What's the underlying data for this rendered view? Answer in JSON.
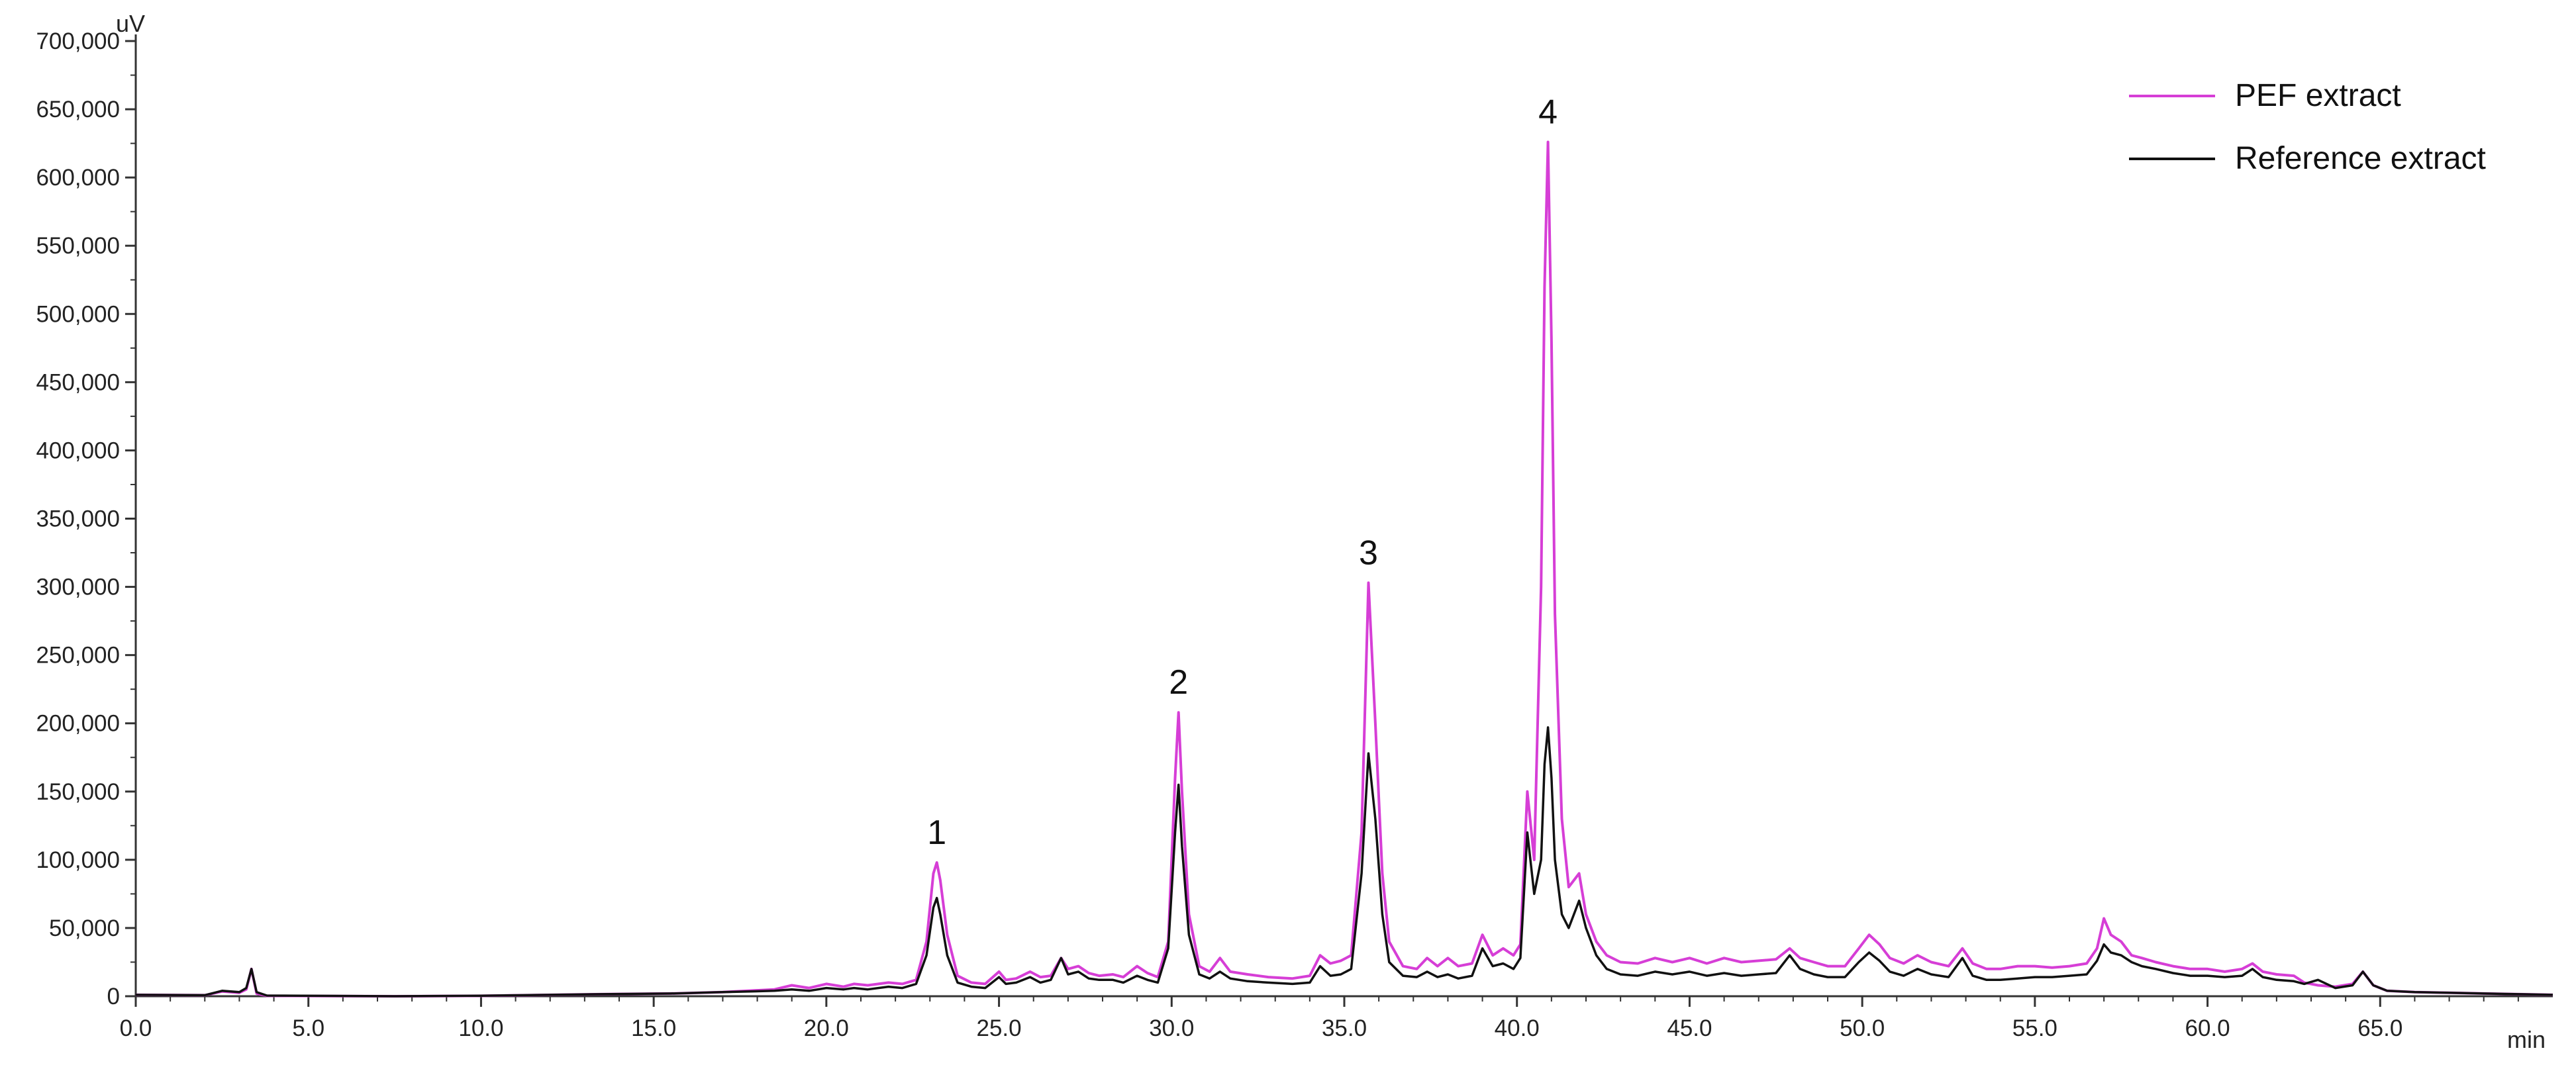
{
  "chart_data": {
    "type": "line",
    "title": "",
    "xlabel": "min",
    "ylabel": "uV",
    "xlim": [
      0,
      70
    ],
    "ylim": [
      0,
      700000
    ],
    "grid": false,
    "legend_position": "top-right",
    "x_ticks": [
      "0.0",
      "5.0",
      "10.0",
      "15.0",
      "20.0",
      "25.0",
      "30.0",
      "35.0",
      "40.0",
      "45.0",
      "50.0",
      "55.0",
      "60.0",
      "65.0"
    ],
    "y_ticks": [
      "0",
      "50,000",
      "100,000",
      "150,000",
      "200,000",
      "250,000",
      "300,000",
      "350,000",
      "400,000",
      "450,000",
      "500,000",
      "550,000",
      "600,000",
      "650,000",
      "700,000"
    ],
    "colors": {
      "pef": "#d63ed6",
      "reference": "#111111",
      "axis": "#333333"
    },
    "annotations": [
      {
        "label": "1",
        "x": 23.2,
        "y": 98000
      },
      {
        "label": "2",
        "x": 30.2,
        "y": 208000
      },
      {
        "label": "3",
        "x": 35.7,
        "y": 303000
      },
      {
        "label": "4",
        "x": 40.9,
        "y": 626000
      }
    ],
    "series": [
      {
        "name": "PEF extract",
        "color": "#d63ed6",
        "x": [
          0,
          2.0,
          2.5,
          3.0,
          3.2,
          3.35,
          3.5,
          3.8,
          7.5,
          10.0,
          13.5,
          15.5,
          17.0,
          18.5,
          19.0,
          19.5,
          20.0,
          20.5,
          20.8,
          21.2,
          21.8,
          22.2,
          22.6,
          22.9,
          23.1,
          23.2,
          23.3,
          23.5,
          23.8,
          24.2,
          24.6,
          25.0,
          25.2,
          25.5,
          25.9,
          26.2,
          26.5,
          26.8,
          27.0,
          27.3,
          27.6,
          27.9,
          28.3,
          28.6,
          29.0,
          29.3,
          29.6,
          29.9,
          30.1,
          30.2,
          30.3,
          30.5,
          30.8,
          31.1,
          31.4,
          31.7,
          32.2,
          32.8,
          33.5,
          34.0,
          34.3,
          34.6,
          34.9,
          35.2,
          35.5,
          35.7,
          35.9,
          36.1,
          36.3,
          36.7,
          37.1,
          37.4,
          37.7,
          38.0,
          38.3,
          38.7,
          39.0,
          39.3,
          39.6,
          39.9,
          40.1,
          40.3,
          40.5,
          40.7,
          40.8,
          40.9,
          41.0,
          41.1,
          41.3,
          41.5,
          41.8,
          42.0,
          42.3,
          42.6,
          43.0,
          43.5,
          44.0,
          44.5,
          45.0,
          45.5,
          46.0,
          46.5,
          47.0,
          47.5,
          47.9,
          48.2,
          48.6,
          49.0,
          49.5,
          49.9,
          50.2,
          50.5,
          50.8,
          51.2,
          51.6,
          52.0,
          52.5,
          52.9,
          53.2,
          53.6,
          54.0,
          54.5,
          55.0,
          55.5,
          56.0,
          56.5,
          56.8,
          57.0,
          57.2,
          57.5,
          57.8,
          58.1,
          58.5,
          59.0,
          59.5,
          60.0,
          60.5,
          61.0,
          61.3,
          61.6,
          62.0,
          62.5,
          62.8,
          63.2,
          63.7,
          64.2,
          64.5,
          64.8,
          65.2,
          66.0,
          67.0,
          68.0,
          69.0,
          70.0
        ],
        "y": [
          1000,
          800,
          3500,
          2500,
          5000,
          20000,
          2000,
          300,
          0,
          300,
          1500,
          2000,
          3000,
          5000,
          8000,
          6000,
          9000,
          7000,
          9000,
          8000,
          10000,
          9000,
          12000,
          40000,
          90000,
          98000,
          85000,
          45000,
          15000,
          10000,
          9000,
          18000,
          12000,
          13000,
          18000,
          14000,
          15000,
          28000,
          20000,
          22000,
          17000,
          15000,
          16000,
          14000,
          22000,
          17000,
          14000,
          40000,
          160000,
          208000,
          150000,
          60000,
          22000,
          18000,
          28000,
          18000,
          16000,
          14000,
          13000,
          15000,
          30000,
          24000,
          26000,
          30000,
          120000,
          303000,
          200000,
          90000,
          40000,
          22000,
          20000,
          28000,
          22000,
          28000,
          22000,
          24000,
          45000,
          30000,
          35000,
          30000,
          38000,
          150000,
          100000,
          300000,
          520000,
          626000,
          480000,
          280000,
          130000,
          80000,
          90000,
          60000,
          40000,
          30000,
          25000,
          24000,
          28000,
          25000,
          28000,
          24000,
          28000,
          25000,
          26000,
          27000,
          35000,
          28000,
          25000,
          22000,
          22000,
          35000,
          45000,
          38000,
          28000,
          24000,
          30000,
          25000,
          22000,
          35000,
          24000,
          20000,
          20000,
          22000,
          22000,
          21000,
          22000,
          24000,
          35000,
          57000,
          45000,
          40000,
          30000,
          28000,
          25000,
          22000,
          20000,
          20000,
          18000,
          20000,
          24000,
          18000,
          16000,
          15000,
          10000,
          8000,
          7000,
          9000,
          18000,
          8000,
          4000,
          3000,
          2500,
          2000,
          1500,
          1000
        ]
      },
      {
        "name": "Reference extract",
        "color": "#111111",
        "x": [
          0,
          2.0,
          2.5,
          3.0,
          3.2,
          3.35,
          3.5,
          3.8,
          7.5,
          10.0,
          13.5,
          15.5,
          17.0,
          18.5,
          19.0,
          19.5,
          20.0,
          20.5,
          20.8,
          21.2,
          21.8,
          22.2,
          22.6,
          22.9,
          23.1,
          23.2,
          23.3,
          23.5,
          23.8,
          24.2,
          24.6,
          25.0,
          25.2,
          25.5,
          25.9,
          26.2,
          26.5,
          26.8,
          27.0,
          27.3,
          27.6,
          27.9,
          28.3,
          28.6,
          29.0,
          29.3,
          29.6,
          29.9,
          30.1,
          30.2,
          30.3,
          30.5,
          30.8,
          31.1,
          31.4,
          31.7,
          32.2,
          32.8,
          33.5,
          34.0,
          34.3,
          34.6,
          34.9,
          35.2,
          35.5,
          35.7,
          35.9,
          36.1,
          36.3,
          36.7,
          37.1,
          37.4,
          37.7,
          38.0,
          38.3,
          38.7,
          39.0,
          39.3,
          39.6,
          39.9,
          40.1,
          40.3,
          40.5,
          40.7,
          40.8,
          40.9,
          41.0,
          41.1,
          41.3,
          41.5,
          41.8,
          42.0,
          42.3,
          42.6,
          43.0,
          43.5,
          44.0,
          44.5,
          45.0,
          45.5,
          46.0,
          46.5,
          47.0,
          47.5,
          47.9,
          48.2,
          48.6,
          49.0,
          49.5,
          49.9,
          50.2,
          50.5,
          50.8,
          51.2,
          51.6,
          52.0,
          52.5,
          52.9,
          53.2,
          53.6,
          54.0,
          54.5,
          55.0,
          55.5,
          56.0,
          56.5,
          56.8,
          57.0,
          57.2,
          57.5,
          57.8,
          58.1,
          58.5,
          59.0,
          59.5,
          60.0,
          60.5,
          61.0,
          61.3,
          61.6,
          62.0,
          62.5,
          62.8,
          63.2,
          63.7,
          64.2,
          64.5,
          64.8,
          65.2,
          66.0,
          67.0,
          68.0,
          69.0,
          70.0
        ],
        "y": [
          1000,
          800,
          4000,
          3000,
          6000,
          20000,
          3000,
          500,
          0,
          400,
          1500,
          2000,
          3000,
          4000,
          5000,
          4000,
          6000,
          5000,
          6000,
          5000,
          7000,
          6000,
          9000,
          30000,
          65000,
          72000,
          60000,
          30000,
          10000,
          7000,
          6000,
          14000,
          9000,
          10000,
          14000,
          10000,
          12000,
          28000,
          16000,
          18000,
          13000,
          12000,
          12000,
          10000,
          15000,
          12000,
          10000,
          35000,
          120000,
          155000,
          110000,
          45000,
          16000,
          13000,
          18000,
          13000,
          11000,
          10000,
          9000,
          10000,
          22000,
          15000,
          16000,
          20000,
          90000,
          178000,
          130000,
          60000,
          25000,
          15000,
          14000,
          18000,
          14000,
          16000,
          13000,
          15000,
          35000,
          22000,
          24000,
          20000,
          28000,
          120000,
          75000,
          100000,
          170000,
          197000,
          160000,
          100000,
          60000,
          50000,
          70000,
          50000,
          30000,
          20000,
          16000,
          15000,
          18000,
          16000,
          18000,
          15000,
          17000,
          15000,
          16000,
          17000,
          30000,
          20000,
          16000,
          14000,
          14000,
          25000,
          32000,
          26000,
          18000,
          15000,
          20000,
          16000,
          14000,
          28000,
          15000,
          12000,
          12000,
          13000,
          14000,
          14000,
          15000,
          16000,
          26000,
          38000,
          32000,
          30000,
          25000,
          22000,
          20000,
          17000,
          15000,
          15000,
          14000,
          15000,
          20000,
          14000,
          12000,
          11000,
          9000,
          12000,
          6000,
          8000,
          18000,
          8000,
          4000,
          3000,
          2500,
          2000,
          1500,
          1000
        ]
      }
    ]
  }
}
